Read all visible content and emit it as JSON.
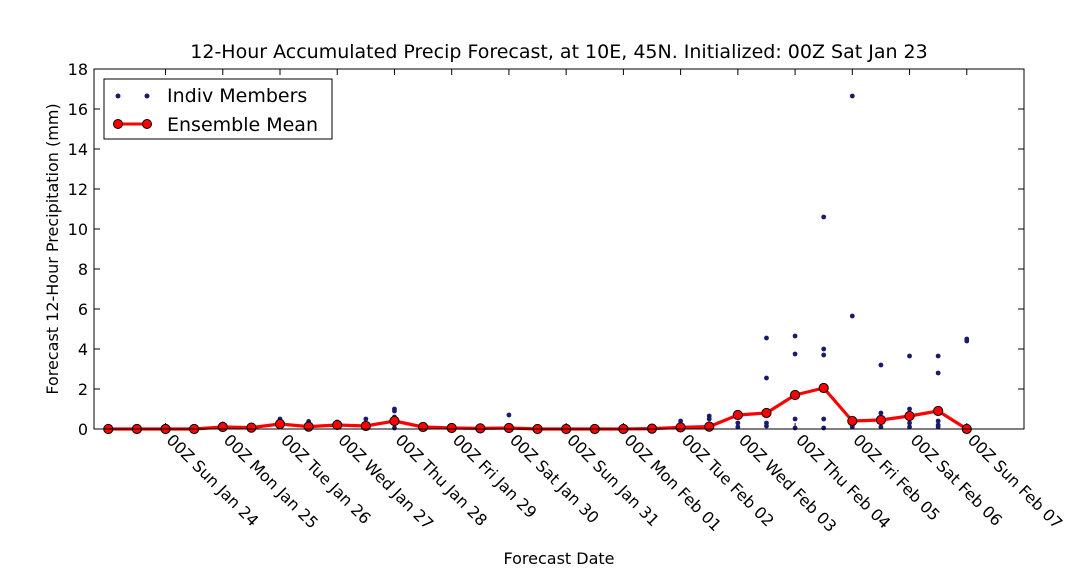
{
  "chart_data": {
    "type": "line",
    "title": "12-Hour Accumulated Precip Forecast, at 10E, 45N.  Initialized: 00Z Sat Jan 23",
    "xlabel": "Forecast Date",
    "ylabel": "Forecast 12-Hour Precipitation (mm)",
    "ylim": [
      0,
      18
    ],
    "yticks": [
      0,
      2,
      4,
      6,
      8,
      10,
      12,
      14,
      16,
      18
    ],
    "xlim": [
      -0.5,
      32
    ],
    "x_tick_labels": [
      {
        "x": 2,
        "label": "00Z Sun Jan 24"
      },
      {
        "x": 4,
        "label": "00Z Mon Jan 25"
      },
      {
        "x": 6,
        "label": "00Z Tue Jan 26"
      },
      {
        "x": 8,
        "label": "00Z Wed Jan 27"
      },
      {
        "x": 10,
        "label": "00Z Thu Jan 28"
      },
      {
        "x": 12,
        "label": "00Z Fri Jan 29"
      },
      {
        "x": 14,
        "label": "00Z Sat Jan 30"
      },
      {
        "x": 16,
        "label": "00Z Sun Jan 31"
      },
      {
        "x": 18,
        "label": "00Z Mon Feb 01"
      },
      {
        "x": 20,
        "label": "00Z Tue Feb 02"
      },
      {
        "x": 22,
        "label": "00Z Wed Feb 03"
      },
      {
        "x": 24,
        "label": "00Z Thu Feb 04"
      },
      {
        "x": 26,
        "label": "00Z Fri Feb 05"
      },
      {
        "x": 28,
        "label": "00Z Sat Feb 06"
      },
      {
        "x": 30,
        "label": "00Z Sun Feb 07"
      }
    ],
    "grid": false,
    "legend": {
      "position": "top-left",
      "entries": [
        {
          "label": "Indiv Members",
          "marker": "dot",
          "color": "#1a1a6e"
        },
        {
          "label": "Ensemble Mean",
          "marker": "line-circle",
          "color": "#ff0000"
        }
      ]
    },
    "series": [
      {
        "name": "Ensemble Mean",
        "color": "#ff0000",
        "x": [
          0,
          1,
          2,
          3,
          4,
          5,
          6,
          7,
          8,
          9,
          10,
          11,
          12,
          13,
          14,
          15,
          16,
          17,
          18,
          19,
          20,
          21,
          22,
          23,
          24,
          25,
          26,
          27,
          28,
          29,
          30
        ],
        "values": [
          0.0,
          0.0,
          0.0,
          0.0,
          0.1,
          0.07,
          0.25,
          0.12,
          0.2,
          0.15,
          0.4,
          0.1,
          0.05,
          0.03,
          0.05,
          0.0,
          0.0,
          0.0,
          0.0,
          0.02,
          0.08,
          0.12,
          0.7,
          0.8,
          1.7,
          2.05,
          0.4,
          0.45,
          0.65,
          0.9,
          0.0
        ]
      },
      {
        "name": "Indiv Members",
        "color": "#1a1a6e",
        "points": [
          [
            0,
            0.08
          ],
          [
            1,
            0.03
          ],
          [
            2,
            0.05
          ],
          [
            3,
            0.05
          ],
          [
            4,
            0.25
          ],
          [
            4,
            0.15
          ],
          [
            5,
            0.12
          ],
          [
            5,
            0.05
          ],
          [
            6,
            0.5
          ],
          [
            6,
            0.4
          ],
          [
            6,
            0.2
          ],
          [
            7,
            0.38
          ],
          [
            7,
            0.15
          ],
          [
            8,
            0.35
          ],
          [
            8,
            0.3
          ],
          [
            8,
            0.1
          ],
          [
            9,
            0.5
          ],
          [
            9,
            0.15
          ],
          [
            10,
            1.0
          ],
          [
            10,
            0.9
          ],
          [
            10,
            0.6
          ],
          [
            10,
            0.3
          ],
          [
            10,
            0.05
          ],
          [
            11,
            0.22
          ],
          [
            11,
            0.1
          ],
          [
            12,
            0.1
          ],
          [
            12,
            0.05
          ],
          [
            13,
            0.15
          ],
          [
            13,
            0.05
          ],
          [
            14,
            0.7
          ],
          [
            14,
            0.08
          ],
          [
            15,
            0.05
          ],
          [
            16,
            0.05
          ],
          [
            17,
            0.05
          ],
          [
            18,
            0.05
          ],
          [
            19,
            0.05
          ],
          [
            20,
            0.4
          ],
          [
            20,
            0.1
          ],
          [
            21,
            0.65
          ],
          [
            21,
            0.5
          ],
          [
            21,
            0.15
          ],
          [
            22,
            0.8
          ],
          [
            22,
            0.3
          ],
          [
            22,
            0.1
          ],
          [
            23,
            4.55
          ],
          [
            23,
            2.55
          ],
          [
            23,
            0.3
          ],
          [
            23,
            0.15
          ],
          [
            24,
            4.65
          ],
          [
            24,
            3.75
          ],
          [
            24,
            0.5
          ],
          [
            24,
            0.05
          ],
          [
            25,
            10.6
          ],
          [
            25,
            4.0
          ],
          [
            25,
            3.7
          ],
          [
            25,
            0.5
          ],
          [
            25,
            0.05
          ],
          [
            26,
            16.65
          ],
          [
            26,
            5.65
          ],
          [
            26,
            0.2
          ],
          [
            26,
            0.1
          ],
          [
            27,
            3.2
          ],
          [
            27,
            0.8
          ],
          [
            27,
            0.1
          ],
          [
            28,
            3.65
          ],
          [
            28,
            1.0
          ],
          [
            28,
            0.3
          ],
          [
            28,
            0.1
          ],
          [
            29,
            3.65
          ],
          [
            29,
            2.8
          ],
          [
            29,
            0.4
          ],
          [
            29,
            0.2
          ],
          [
            29,
            0.1
          ],
          [
            30,
            4.5
          ],
          [
            30,
            4.4
          ],
          [
            30,
            0.1
          ]
        ]
      }
    ]
  }
}
